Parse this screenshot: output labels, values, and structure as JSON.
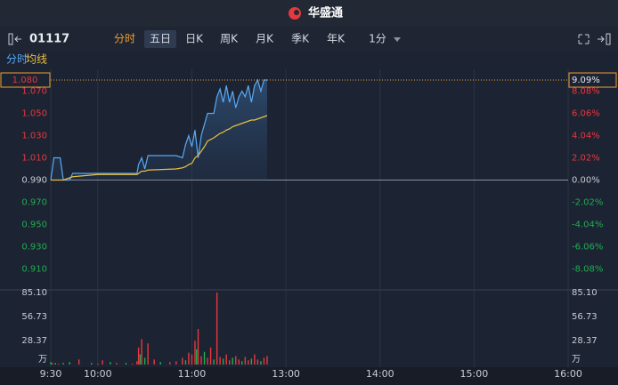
{
  "header": {
    "logo": "华盛通"
  },
  "toolbar": {
    "code": "01117",
    "tabs": [
      "分时",
      "五日",
      "日K",
      "周K",
      "月K",
      "季K",
      "年K",
      "1分"
    ],
    "active": 0,
    "selected": 1
  },
  "chart_data": [
    {
      "type": "line",
      "x": [
        0,
        2,
        6,
        8,
        12,
        14,
        30,
        40,
        55,
        56,
        58,
        60,
        62,
        80,
        84,
        86,
        88,
        90,
        92,
        94,
        96,
        98,
        100,
        104,
        106,
        108,
        110,
        112,
        114,
        116,
        118,
        120,
        122,
        124,
        126,
        128,
        130,
        132,
        134,
        136,
        138
      ],
      "series": [
        {
          "name": "分时",
          "color": "#5aa9f5",
          "values": [
            0.99,
            1.01,
            1.01,
            0.99,
            0.99,
            0.996,
            0.996,
            0.996,
            0.996,
            1.004,
            1.01,
            1.0,
            1.012,
            1.012,
            1.01,
            1.022,
            1.03,
            1.02,
            1.035,
            1.01,
            1.03,
            1.04,
            1.05,
            1.05,
            1.065,
            1.072,
            1.06,
            1.075,
            1.06,
            1.07,
            1.055,
            1.065,
            1.07,
            1.065,
            1.075,
            1.06,
            1.075,
            1.08,
            1.07,
            1.08,
            1.08
          ]
        },
        {
          "name": "均线",
          "color": "#e8c040",
          "values": [
            0.99,
            0.99,
            0.99,
            0.99,
            0.992,
            0.993,
            0.995,
            0.995,
            0.995,
            0.996,
            0.998,
            0.998,
            0.999,
            1.0,
            1.001,
            1.002,
            1.004,
            1.005,
            1.01,
            1.012,
            1.016,
            1.02,
            1.025,
            1.028,
            1.03,
            1.032,
            1.033,
            1.035,
            1.036,
            1.038,
            1.039,
            1.04,
            1.041,
            1.042,
            1.043,
            1.044,
            1.044,
            1.045,
            1.046,
            1.047,
            1.048
          ]
        }
      ],
      "xlim": [
        0,
        330
      ],
      "ylim": [
        0.892,
        1.088
      ],
      "yticks": [
        {
          "value": 1.07,
          "label": "1.070"
        },
        {
          "value": 1.05,
          "label": "1.050"
        },
        {
          "value": 1.03,
          "label": "1.030"
        },
        {
          "value": 1.01,
          "label": "1.010"
        },
        {
          "value": 0.99,
          "label": "0.990"
        },
        {
          "value": 0.97,
          "label": "0.970"
        },
        {
          "value": 0.95,
          "label": "0.950"
        },
        {
          "value": 0.93,
          "label": "0.930"
        },
        {
          "value": 0.91,
          "label": "0.910"
        }
      ],
      "y2lim": [
        -9.9,
        9.9
      ],
      "y2ticks": [
        {
          "value": 8.08,
          "label": "8.08%"
        },
        {
          "value": 6.06,
          "label": "6.06%"
        },
        {
          "value": 4.04,
          "label": "4.04%"
        },
        {
          "value": 2.02,
          "label": "2.02%"
        },
        {
          "value": 0,
          "label": "0.00%"
        },
        {
          "value": -2.02,
          "label": "-2.02%"
        },
        {
          "value": -4.04,
          "label": "-4.04%"
        },
        {
          "value": -6.06,
          "label": "-6.06%"
        },
        {
          "value": -8.08,
          "label": "-8.08%"
        }
      ],
      "prev_close": 0.99,
      "last_price": {
        "value": 1.08,
        "label": "1.080"
      },
      "last_change": {
        "value": 9.09,
        "label": "9.09%"
      },
      "up_color": "#e8383d",
      "down_color": "#1fae4f"
    },
    {
      "type": "bar",
      "x": [
        0,
        1,
        3,
        5,
        8,
        12,
        18,
        26,
        30,
        33,
        38,
        42,
        48,
        52,
        55,
        56,
        57,
        58,
        60,
        62,
        66,
        70,
        76,
        80,
        84,
        86,
        88,
        90,
        92,
        93,
        94,
        96,
        98,
        100,
        102,
        104,
        106,
        108,
        110,
        112,
        114,
        116,
        118,
        120,
        122,
        124,
        126,
        128,
        130,
        132,
        134,
        136,
        138
      ],
      "values": [
        3,
        2,
        2,
        1,
        2,
        3,
        6,
        2,
        1,
        5,
        3,
        2,
        2,
        1,
        4,
        20,
        12,
        30,
        8,
        25,
        6,
        3,
        3,
        4,
        8,
        5,
        14,
        12,
        28,
        18,
        42,
        10,
        15,
        8,
        20,
        6,
        85.1,
        9,
        7,
        12,
        5,
        8,
        10,
        6,
        4,
        9,
        5,
        7,
        12,
        6,
        4,
        8,
        10
      ],
      "colors": [
        "#1fae4f",
        "#e8383d",
        "#1fae4f",
        "#e8383d",
        "#1fae4f",
        "#1fae4f",
        "#e8383d",
        "#1fae4f",
        "#e8383d",
        "#e8383d",
        "#1fae4f",
        "#e8383d",
        "#1fae4f",
        "#e8383d",
        "#e8383d",
        "#e8383d",
        "#1fae4f",
        "#e8383d",
        "#1fae4f",
        "#e8383d",
        "#e8383d",
        "#1fae4f",
        "#e8383d",
        "#e8383d",
        "#e8383d",
        "#1fae4f",
        "#e8383d",
        "#e8383d",
        "#e8383d",
        "#1fae4f",
        "#e8383d",
        "#e8383d",
        "#1fae4f",
        "#e8383d",
        "#e8383d",
        "#1fae4f",
        "#e8383d",
        "#e8383d",
        "#1fae4f",
        "#e8383d",
        "#e8383d",
        "#1fae4f",
        "#e8383d",
        "#e8383d",
        "#1fae4f",
        "#e8383d",
        "#e8383d",
        "#1fae4f",
        "#e8383d",
        "#e8383d",
        "#1fae4f",
        "#e8383d",
        "#e8383d"
      ],
      "xlim": [
        0,
        330
      ],
      "xticks": [
        {
          "value": 0,
          "label": "9:30"
        },
        {
          "value": 30,
          "label": "10:00"
        },
        {
          "value": 90,
          "label": "11:00"
        },
        {
          "value": 150,
          "label": "13:00"
        },
        {
          "value": 210,
          "label": "14:00"
        },
        {
          "value": 270,
          "label": "15:00"
        },
        {
          "value": 330,
          "label": "16:00"
        }
      ],
      "ylim": [
        0,
        85.1
      ],
      "yticks": [
        {
          "value": 85.1,
          "label": "85.10"
        },
        56.73,
        28.37
      ],
      "unit": "万"
    }
  ]
}
